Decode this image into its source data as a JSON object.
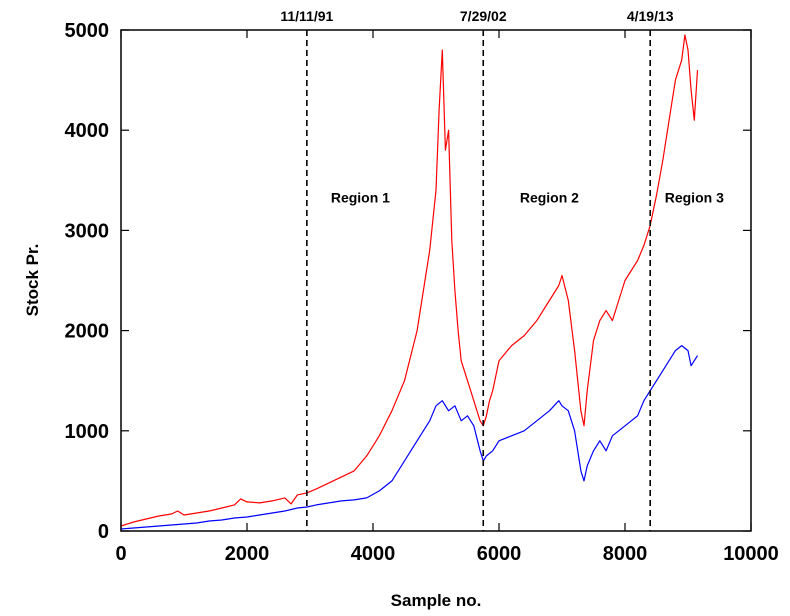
{
  "chart_data": {
    "type": "line",
    "title": "",
    "xlabel": "Sample no.",
    "ylabel": "Stock Pr.",
    "xlim": [
      0,
      10000
    ],
    "ylim": [
      0,
      5000
    ],
    "xticks": [
      "0",
      "2000",
      "4000",
      "6000",
      "8000",
      "10000"
    ],
    "yticks": [
      "0",
      "1000",
      "2000",
      "3000",
      "4000",
      "5000"
    ],
    "grid": false,
    "legend": "none",
    "series": [
      {
        "color": "#ff0000",
        "x": [
          0,
          200,
          400,
          600,
          800,
          900,
          1000,
          1200,
          1400,
          1600,
          1800,
          1900,
          2000,
          2200,
          2400,
          2600,
          2700,
          2800,
          2950,
          3100,
          3300,
          3500,
          3700,
          3900,
          4100,
          4300,
          4500,
          4700,
          4800,
          4900,
          5000,
          5050,
          5100,
          5150,
          5200,
          5250,
          5300,
          5350,
          5400,
          5500,
          5600,
          5700,
          5750,
          5800,
          5850,
          5900,
          6000,
          6200,
          6400,
          6600,
          6800,
          6950,
          7000,
          7100,
          7200,
          7300,
          7350,
          7400,
          7500,
          7600,
          7700,
          7800,
          7900,
          8000,
          8100,
          8200,
          8300,
          8400,
          8500,
          8600,
          8700,
          8800,
          8900,
          8950,
          9000,
          9050,
          9100,
          9150
        ],
        "y": [
          50,
          90,
          120,
          150,
          170,
          200,
          160,
          180,
          200,
          230,
          260,
          320,
          290,
          280,
          300,
          330,
          270,
          360,
          380,
          420,
          480,
          540,
          600,
          750,
          950,
          1200,
          1500,
          2000,
          2400,
          2800,
          3400,
          4200,
          4800,
          3800,
          4000,
          2900,
          2400,
          2000,
          1700,
          1500,
          1300,
          1100,
          1050,
          1150,
          1300,
          1400,
          1700,
          1850,
          1950,
          2100,
          2300,
          2450,
          2550,
          2300,
          1800,
          1200,
          1050,
          1400,
          1900,
          2100,
          2200,
          2100,
          2300,
          2500,
          2600,
          2700,
          2850,
          3050,
          3350,
          3700,
          4100,
          4500,
          4700,
          4950,
          4800,
          4400,
          4100,
          4600
        ]
      },
      {
        "color": "#0000ff",
        "x": [
          0,
          200,
          400,
          600,
          800,
          1000,
          1200,
          1400,
          1600,
          1800,
          2000,
          2200,
          2400,
          2600,
          2800,
          2950,
          3100,
          3300,
          3500,
          3700,
          3900,
          4100,
          4300,
          4500,
          4700,
          4900,
          5000,
          5100,
          5200,
          5300,
          5400,
          5500,
          5600,
          5700,
          5750,
          5800,
          5900,
          6000,
          6200,
          6400,
          6600,
          6800,
          6950,
          7000,
          7100,
          7200,
          7300,
          7350,
          7400,
          7500,
          7600,
          7700,
          7800,
          7900,
          8000,
          8100,
          8200,
          8300,
          8400,
          8500,
          8600,
          8700,
          8800,
          8900,
          9000,
          9050,
          9100,
          9150
        ],
        "y": [
          20,
          30,
          40,
          50,
          60,
          70,
          80,
          100,
          110,
          130,
          140,
          160,
          180,
          200,
          230,
          240,
          260,
          280,
          300,
          310,
          330,
          400,
          500,
          700,
          900,
          1100,
          1250,
          1300,
          1200,
          1250,
          1100,
          1150,
          1050,
          800,
          700,
          750,
          800,
          900,
          950,
          1000,
          1100,
          1200,
          1300,
          1250,
          1200,
          1000,
          600,
          500,
          650,
          800,
          900,
          800,
          950,
          1000,
          1050,
          1100,
          1150,
          1300,
          1400,
          1500,
          1600,
          1700,
          1800,
          1850,
          1800,
          1650,
          1700,
          1750
        ]
      }
    ],
    "annotations": {
      "dates": [
        {
          "x": 2950,
          "label": "11/11/91"
        },
        {
          "x": 5750,
          "label": "7/29/02"
        },
        {
          "x": 8400,
          "label": "4/19/13"
        }
      ],
      "regions": [
        {
          "x": 3800,
          "y": 3280,
          "label": "Region 1"
        },
        {
          "x": 6800,
          "y": 3280,
          "label": "Region 2"
        },
        {
          "x": 9100,
          "y": 3280,
          "label": "Region 3"
        }
      ]
    }
  }
}
